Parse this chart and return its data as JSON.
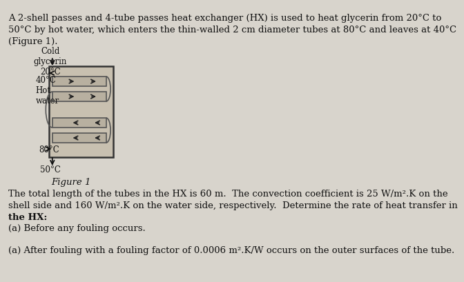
{
  "bg_color": "#d8d4cc",
  "title_text": "",
  "body_text_1": "A 2-shell passes and 4-tube passes heat exchanger (HX) is used to heat glycerin from 20°C to",
  "body_text_2": "50°C by hot water, which enters the thin-walled 2 cm diameter tubes at 80°C and leaves at 40°C",
  "body_text_3": "(Figure 1).",
  "figure_label": "Figure 1",
  "label_cold": "Cold\nglycerin\n20°C",
  "label_hot_water": "40°C\nHot\nwater",
  "label_80": "80°C",
  "label_50": "50°C",
  "para1": "The total length of the tubes in the HX is 60 m.  The convection coefficient is 25 W/m².K on the",
  "para2": "shell side and 160 W/m².K on the water side, respectively.  Determine the rate of heat transfer in",
  "para3": "the HX:",
  "para4": "(a) Before any fouling occurs.",
  "para5": "(a) After fouling with a fouling factor of 0.0006 m².K/W occurs on the outer surfaces of the tube.",
  "font_size_body": 9.5,
  "font_size_small": 8.5
}
